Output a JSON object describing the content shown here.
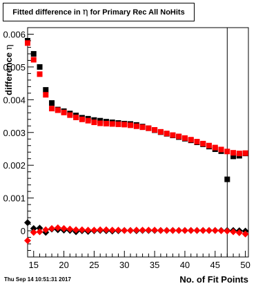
{
  "page": {
    "title_prefix": "Fitted difference in ",
    "title_symbol": "η",
    "title_suffix": " for Primary Rec All NoHits",
    "timestamp": "Thu Sep 14 10:51:31 2017"
  },
  "chart_data": {
    "type": "scatter",
    "title": "Fitted difference in η for Primary Rec All NoHits",
    "xlabel": "No. of Fit Points",
    "ylabel_text": "difference ",
    "ylabel_symbol": "η",
    "xlim": [
      14,
      50.5
    ],
    "ylim": [
      -0.0008,
      0.0062
    ],
    "xticks": [
      15,
      20,
      25,
      30,
      35,
      40,
      45,
      50
    ],
    "xtick_labels": [
      "15",
      "20",
      "25",
      "30",
      "35",
      "40",
      "45",
      "50"
    ],
    "yticks": [
      0,
      0.001,
      0.002,
      0.003,
      0.004,
      0.005,
      0.006
    ],
    "ytick_labels": [
      "0",
      "0.001",
      "0.002",
      "0.003",
      "0.004",
      "0.005",
      "0.006"
    ],
    "vertical_line_x": 47,
    "series": [
      {
        "color": "#000000",
        "marker": "square",
        "x": [
          14,
          15,
          16,
          17,
          18,
          19,
          20,
          21,
          22,
          23,
          24,
          25,
          26,
          27,
          28,
          29,
          30,
          31,
          32,
          33,
          34,
          35,
          36,
          37,
          38,
          39,
          40,
          41,
          42,
          43,
          44,
          45,
          46,
          47,
          48,
          49,
          50
        ],
        "values": [
          0.0058,
          0.0054,
          0.005,
          0.0043,
          0.0039,
          0.0037,
          0.00365,
          0.00358,
          0.00352,
          0.00345,
          0.00342,
          0.00338,
          0.00336,
          0.00333,
          0.00331,
          0.00329,
          0.00327,
          0.00326,
          0.00323,
          0.00318,
          0.00313,
          0.00307,
          0.00301,
          0.00296,
          0.00291,
          0.00286,
          0.00281,
          0.00276,
          0.0027,
          0.00264,
          0.00257,
          0.00249,
          0.00243,
          0.00157,
          0.00227,
          0.00229,
          0.00236
        ]
      },
      {
        "color": "#ff0000",
        "marker": "square",
        "x": [
          14,
          15,
          16,
          17,
          18,
          19,
          20,
          21,
          22,
          23,
          24,
          25,
          26,
          27,
          28,
          29,
          30,
          31,
          32,
          33,
          34,
          35,
          36,
          37,
          38,
          39,
          40,
          41,
          42,
          43,
          44,
          45,
          46,
          47,
          48,
          49,
          50
        ],
        "values": [
          0.00573,
          0.00522,
          0.00478,
          0.00415,
          0.00373,
          0.00368,
          0.00361,
          0.00353,
          0.00346,
          0.0034,
          0.00336,
          0.00331,
          0.00328,
          0.00327,
          0.00326,
          0.00325,
          0.00324,
          0.00322,
          0.00319,
          0.00316,
          0.00313,
          0.00308,
          0.00302,
          0.00297,
          0.00292,
          0.00288,
          0.00283,
          0.00278,
          0.00272,
          0.00266,
          0.0026,
          0.00254,
          0.00248,
          0.00242,
          0.00238,
          0.00236,
          0.00237
        ]
      },
      {
        "color": "#000000",
        "marker": "diamond",
        "x": [
          14,
          15,
          16,
          17,
          18,
          19,
          20,
          21,
          22,
          23,
          24,
          25,
          26,
          27,
          28,
          29,
          30,
          31,
          32,
          33,
          34,
          35,
          36,
          37,
          38,
          39,
          40,
          41,
          42,
          43,
          44,
          45,
          46,
          47,
          48,
          49,
          50
        ],
        "values": [
          0.00025,
          7e-05,
          8e-05,
          -5e-05,
          5e-05,
          3e-05,
          2e-05,
          1e-05,
          -3e-05,
          0.0,
          -2e-05,
          0.0,
          1e-05,
          0.0,
          -1e-05,
          0.0,
          1e-05,
          1e-05,
          0.0,
          1e-05,
          1e-05,
          1e-05,
          1e-05,
          1e-05,
          1e-05,
          1e-05,
          1e-05,
          1e-05,
          1e-05,
          1e-05,
          1e-05,
          1e-05,
          1e-05,
          1e-05,
          1e-05,
          0.0,
          -1e-05
        ]
      },
      {
        "color": "#ff0000",
        "marker": "diamond",
        "x": [
          14,
          15,
          16,
          17,
          18,
          19,
          20,
          21,
          22,
          23,
          24,
          25,
          26,
          27,
          28,
          29,
          30,
          31,
          32,
          33,
          34,
          35,
          36,
          37,
          38,
          39,
          40,
          41,
          42,
          43,
          44,
          45,
          46,
          47,
          48,
          49,
          50
        ],
        "values": [
          -0.0003,
          -5e-05,
          -3e-05,
          3e-05,
          7e-05,
          9e-05,
          7e-05,
          5e-05,
          3e-05,
          3e-05,
          2e-05,
          2e-05,
          3e-05,
          3e-05,
          2e-05,
          2e-05,
          1e-05,
          1e-05,
          2e-05,
          2e-05,
          2e-05,
          2e-05,
          1e-05,
          1e-05,
          1e-05,
          1e-05,
          1e-05,
          1e-05,
          1e-05,
          1e-05,
          1e-05,
          1e-05,
          0.0,
          -1e-05,
          -3e-05,
          -6e-05,
          -0.0001
        ]
      }
    ]
  }
}
